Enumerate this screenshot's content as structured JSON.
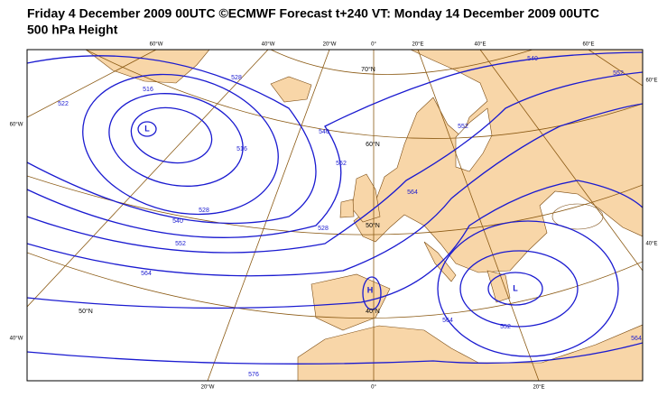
{
  "header": {
    "title": "Friday 4 December 2009 00UTC ©ECMWF Forecast t+240 VT: Monday 14 December 2009 00UTC",
    "subtitle": "500 hPa Height"
  },
  "map": {
    "edge_labels": [
      "60°W",
      "40°W",
      "20°W",
      "0°",
      "20°E",
      "40°E",
      "60°E",
      "60°W",
      "40°W",
      "60°E",
      "40°E",
      "20°W",
      "0°",
      "20°E"
    ],
    "lat_labels": [
      "70°N",
      "60°N",
      "50°N",
      "40°N",
      "50°N"
    ],
    "contour_labels": [
      "516",
      "522",
      "528",
      "516",
      "528",
      "540",
      "552",
      "564",
      "576",
      "540",
      "552",
      "564",
      "528",
      "552",
      "540",
      "552",
      "564",
      "552",
      "564"
    ],
    "centers": [
      "L",
      "H",
      "L"
    ]
  }
}
